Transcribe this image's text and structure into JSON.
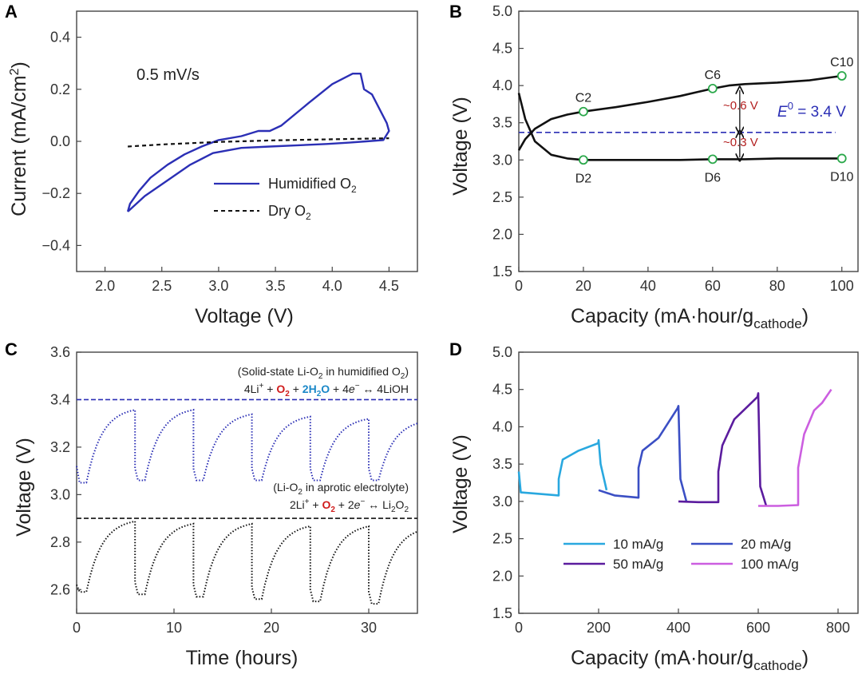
{
  "panels": {
    "A": {
      "letter": "A"
    },
    "B": {
      "letter": "B"
    },
    "C": {
      "letter": "C"
    },
    "D": {
      "letter": "D"
    }
  },
  "chart_data": [
    {
      "panel": "A",
      "type": "line",
      "xlabel": "Voltage (V)",
      "ylabel_main": "Current (mA/cm",
      "ylabel_sup": "2",
      "ylabel_end": ")",
      "xlim": [
        1.75,
        4.75
      ],
      "ylim": [
        -0.5,
        0.5
      ],
      "xticks": [
        2.0,
        2.5,
        3.0,
        3.5,
        4.0,
        4.5
      ],
      "xtick_labels": [
        "2.0",
        "2.5",
        "3.0",
        "3.5",
        "4.0",
        "4.5"
      ],
      "yticks": [
        -0.4,
        -0.2,
        0.0,
        0.2,
        0.4
      ],
      "ytick_labels": [
        "−0.4",
        "−0.2",
        "0.0",
        "0.2",
        "0.4"
      ],
      "annotation": "0.5 mV/s",
      "legend": [
        {
          "label": "Humidified O",
          "sub": "2",
          "color": "#2b2fb5",
          "dash": "solid"
        },
        {
          "label": "Dry O",
          "sub": "2",
          "color": "#111111",
          "dash": "dashed"
        }
      ],
      "series": [
        {
          "name": "Humidified O2",
          "color": "#2b2fb5",
          "x": [
            2.2,
            2.25,
            2.35,
            2.55,
            2.75,
            2.95,
            3.2,
            3.45,
            3.7,
            3.95,
            4.15,
            4.3,
            4.45,
            4.5,
            4.48,
            4.35,
            4.28,
            4.25,
            4.18,
            4.0,
            3.8,
            3.55,
            3.45,
            3.35,
            3.2,
            3.0,
            2.85,
            2.7,
            2.55,
            2.4,
            2.3,
            2.22,
            2.2
          ],
          "y": [
            -0.27,
            -0.25,
            -0.21,
            -0.15,
            -0.09,
            -0.045,
            -0.025,
            -0.02,
            -0.015,
            -0.01,
            -0.005,
            0.0,
            0.005,
            0.04,
            0.07,
            0.18,
            0.2,
            0.26,
            0.26,
            0.22,
            0.15,
            0.06,
            0.04,
            0.04,
            0.02,
            0.005,
            -0.02,
            -0.05,
            -0.09,
            -0.14,
            -0.19,
            -0.24,
            -0.27
          ]
        },
        {
          "name": "Dry O2",
          "color": "#111111",
          "x": [
            2.2,
            2.5,
            3.0,
            3.5,
            4.0,
            4.5
          ],
          "y": [
            -0.02,
            -0.012,
            -0.002,
            0.004,
            0.008,
            0.012
          ]
        }
      ]
    },
    {
      "panel": "B",
      "type": "line",
      "xlabel": "Capacity (mA·hour/g",
      "xlabel_sub": "cathode",
      "xlabel_end": ")",
      "ylabel": "Voltage (V)",
      "xlim": [
        0,
        105
      ],
      "ylim": [
        1.5,
        5.0
      ],
      "xticks": [
        0,
        20,
        40,
        60,
        80,
        100
      ],
      "xtick_labels": [
        "0",
        "20",
        "40",
        "60",
        "80",
        "100"
      ],
      "yticks": [
        1.5,
        2.0,
        2.5,
        3.0,
        3.5,
        4.0,
        4.5,
        5.0
      ],
      "ytick_labels": [
        "1.5",
        "2.0",
        "2.5",
        "3.0",
        "3.5",
        "4.0",
        "4.5",
        "5.0"
      ],
      "e0_value": 3.37,
      "e0_label_main": "E",
      "e0_label_sup": "0",
      "e0_label_end": " = 3.4 V",
      "gap_charge_label": "~0.6 V",
      "gap_discharge_label": "~0.3 V",
      "gap_x": 60,
      "markers": [
        {
          "label": "C2",
          "x": 20,
          "y": 3.65
        },
        {
          "label": "C6",
          "x": 60,
          "y": 3.96
        },
        {
          "label": "C10",
          "x": 100,
          "y": 4.13
        },
        {
          "label": "D2",
          "x": 20,
          "y": 3.0
        },
        {
          "label": "D6",
          "x": 60,
          "y": 3.01
        },
        {
          "label": "D10",
          "x": 100,
          "y": 3.02
        }
      ],
      "series": [
        {
          "name": "charge",
          "color": "#111111",
          "x": [
            0,
            2,
            5,
            10,
            15,
            20,
            30,
            40,
            50,
            55,
            60,
            65,
            70,
            80,
            90,
            100
          ],
          "y": [
            3.13,
            3.28,
            3.42,
            3.55,
            3.61,
            3.65,
            3.71,
            3.78,
            3.86,
            3.91,
            3.96,
            4.0,
            4.02,
            4.04,
            4.07,
            4.13
          ]
        },
        {
          "name": "discharge",
          "color": "#111111",
          "x": [
            0,
            2,
            5,
            10,
            15,
            20,
            30,
            40,
            50,
            60,
            70,
            80,
            90,
            100
          ],
          "y": [
            3.9,
            3.55,
            3.25,
            3.07,
            3.02,
            3.0,
            3.0,
            3.0,
            3.0,
            3.01,
            3.01,
            3.02,
            3.02,
            3.02
          ]
        }
      ]
    },
    {
      "panel": "C",
      "type": "line",
      "xlabel": "Time (hours)",
      "ylabel": "Voltage (V)",
      "xlim": [
        0,
        35
      ],
      "ylim": [
        2.5,
        3.6
      ],
      "xticks": [
        0,
        10,
        20,
        30
      ],
      "xtick_labels": [
        "0",
        "10",
        "20",
        "30"
      ],
      "yticks": [
        2.6,
        2.8,
        3.0,
        3.2,
        3.4,
        3.6
      ],
      "ytick_labels": [
        "2.6",
        "2.8",
        "3.0",
        "3.2",
        "3.4",
        "3.6"
      ],
      "ref_lines": [
        {
          "value": 3.4,
          "color": "#2b2fb5"
        },
        {
          "value": 2.9,
          "color": "#111111"
        }
      ],
      "annot_top_1": "(Solid-state Li-O",
      "annot_top_1_sub": "2",
      "annot_top_1_mid": " in humidified O",
      "annot_top_1_sub2": "2",
      "annot_top_1_end": ")",
      "annot_top_2_a": "4Li",
      "annot_top_2_sup": "+",
      "annot_top_2_b": " + ",
      "annot_top_2_o2": "O",
      "annot_top_2_o2_sub": "2",
      "annot_top_2_c": " + ",
      "annot_top_2_h2o_a": "2H",
      "annot_top_2_h2o_sub": "2",
      "annot_top_2_h2o_b": "O",
      "annot_top_2_d": " + 4",
      "annot_top_2_e": "e",
      "annot_top_2_esup": "−",
      "annot_top_2_f": " ↔ 4LiOH",
      "annot_bot_1": "(Li-O",
      "annot_bot_1_sub": "2",
      "annot_bot_1_end": " in aprotic electrolyte)",
      "annot_bot_2_a": "2Li",
      "annot_bot_2_sup": "+",
      "annot_bot_2_b": " + ",
      "annot_bot_2_o2": "O",
      "annot_bot_2_o2_sub": "2",
      "annot_bot_2_c": " + 2",
      "annot_bot_2_e": "e",
      "annot_bot_2_esup": "−",
      "annot_bot_2_d": " ↔ Li",
      "annot_bot_2_sub": "2",
      "annot_bot_2_e2": "O",
      "annot_bot_2_sub2": "2",
      "series": [
        {
          "name": "Solid-state Li-O2 in humidified O2",
          "color": "#2b2fb5",
          "dash": "dotted",
          "cycles": [
            {
              "start": 0,
              "discharge": 3.05,
              "charge_peak": 3.37
            },
            {
              "start": 6,
              "discharge": 3.06,
              "charge_peak": 3.37
            },
            {
              "start": 12,
              "discharge": 3.06,
              "charge_peak": 3.35
            },
            {
              "start": 18,
              "discharge": 3.06,
              "charge_peak": 3.34
            },
            {
              "start": 24,
              "discharge": 3.06,
              "charge_peak": 3.33
            },
            {
              "start": 30,
              "discharge": 3.06,
              "charge_peak": 3.32
            }
          ]
        },
        {
          "name": "Li-O2 in aprotic electrolyte",
          "color": "#111111",
          "dash": "dotted",
          "cycles": [
            {
              "start": 0,
              "discharge": 2.59,
              "charge_peak": 2.9
            },
            {
              "start": 6,
              "discharge": 2.58,
              "charge_peak": 2.89
            },
            {
              "start": 12,
              "discharge": 2.57,
              "charge_peak": 2.89
            },
            {
              "start": 18,
              "discharge": 2.56,
              "charge_peak": 2.88
            },
            {
              "start": 24,
              "discharge": 2.55,
              "charge_peak": 2.88
            },
            {
              "start": 30,
              "discharge": 2.54,
              "charge_peak": 2.87
            }
          ]
        }
      ]
    },
    {
      "panel": "D",
      "type": "line",
      "xlabel": "Capacity (mA·hour/g",
      "xlabel_sub": "cathode",
      "xlabel_end": ")",
      "ylabel": "Voltage (V)",
      "xlim": [
        0,
        850
      ],
      "ylim": [
        1.5,
        5.0
      ],
      "xticks": [
        0,
        200,
        400,
        600,
        800
      ],
      "xtick_labels": [
        "0",
        "200",
        "400",
        "600",
        "800"
      ],
      "yticks": [
        1.5,
        2.0,
        2.5,
        3.0,
        3.5,
        4.0,
        4.5,
        5.0
      ],
      "ytick_labels": [
        "1.5",
        "2.0",
        "2.5",
        "3.0",
        "3.5",
        "4.0",
        "4.5",
        "5.0"
      ],
      "legend": [
        {
          "label": "10 mA/g",
          "color": "#29a8df"
        },
        {
          "label": "20 mA/g",
          "color": "#3b4fc4"
        },
        {
          "label": "50 mA/g",
          "color": "#5b1c9e"
        },
        {
          "label": "100 mA/g",
          "color": "#cc5ee0"
        }
      ],
      "series": [
        {
          "name": "10 mA/g",
          "color": "#29a8df",
          "x": [
            0,
            5,
            30,
            100,
            100,
            110,
            150,
            199,
            200,
            205,
            220
          ],
          "y": [
            3.4,
            3.12,
            3.11,
            3.08,
            3.3,
            3.56,
            3.68,
            3.78,
            3.82,
            3.5,
            3.15
          ]
        },
        {
          "name": "20 mA/g",
          "color": "#3b4fc4",
          "x": [
            200,
            240,
            300,
            300,
            310,
            350,
            398,
            400,
            405,
            420
          ],
          "y": [
            3.15,
            3.08,
            3.05,
            3.45,
            3.68,
            3.85,
            4.25,
            4.28,
            3.3,
            3.0
          ]
        },
        {
          "name": "50 mA/g",
          "color": "#5b1c9e",
          "x": [
            400,
            450,
            500,
            500,
            510,
            540,
            598,
            600,
            605,
            620
          ],
          "y": [
            3.0,
            2.99,
            2.99,
            3.4,
            3.75,
            4.1,
            4.4,
            4.45,
            3.2,
            2.94
          ]
        },
        {
          "name": "100 mA/g",
          "color": "#cc5ee0",
          "x": [
            600,
            650,
            700,
            700,
            715,
            740,
            760,
            783
          ],
          "y": [
            2.94,
            2.94,
            2.95,
            3.45,
            3.9,
            4.22,
            4.32,
            4.5
          ]
        }
      ]
    }
  ]
}
